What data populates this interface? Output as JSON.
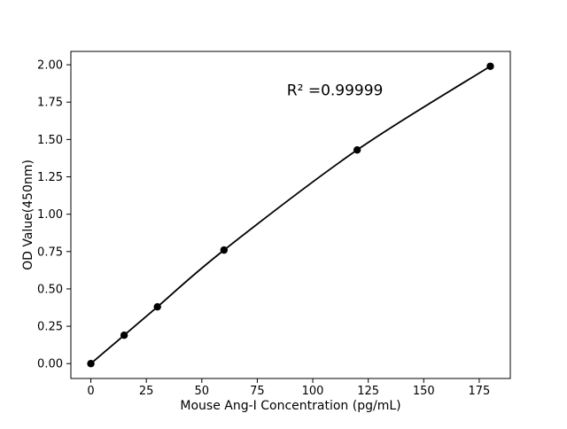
{
  "chart_data": {
    "type": "scatter",
    "x": [
      0,
      15,
      30,
      60,
      120,
      180
    ],
    "y": [
      0.0,
      0.19,
      0.38,
      0.76,
      1.43,
      1.99
    ],
    "curve": "smooth-line-through-points",
    "title": "",
    "xlabel": "Mouse Ang-I Concentration (pg/mL)",
    "ylabel": "OD Value(450nm)",
    "xlim": [
      -9,
      189
    ],
    "ylim": [
      -0.0995,
      2.0895
    ],
    "xticks": [
      0,
      25,
      50,
      75,
      100,
      125,
      150,
      175
    ],
    "xtick_labels": [
      "0",
      "25",
      "50",
      "75",
      "100",
      "125",
      "150",
      "175"
    ],
    "yticks": [
      0.0,
      0.25,
      0.5,
      0.75,
      1.0,
      1.25,
      1.5,
      1.75,
      2.0
    ],
    "ytick_labels": [
      "0.00",
      "0.25",
      "0.50",
      "0.75",
      "1.00",
      "1.25",
      "1.50",
      "1.75",
      "2.00"
    ],
    "grid": false,
    "legend_position": "none",
    "annotation": {
      "text": "R² =0.99999",
      "x": 110,
      "y": 1.83
    },
    "colors": {
      "line": "#000000",
      "marker": "#000000",
      "spine": "#000000",
      "background": "#ffffff"
    }
  }
}
